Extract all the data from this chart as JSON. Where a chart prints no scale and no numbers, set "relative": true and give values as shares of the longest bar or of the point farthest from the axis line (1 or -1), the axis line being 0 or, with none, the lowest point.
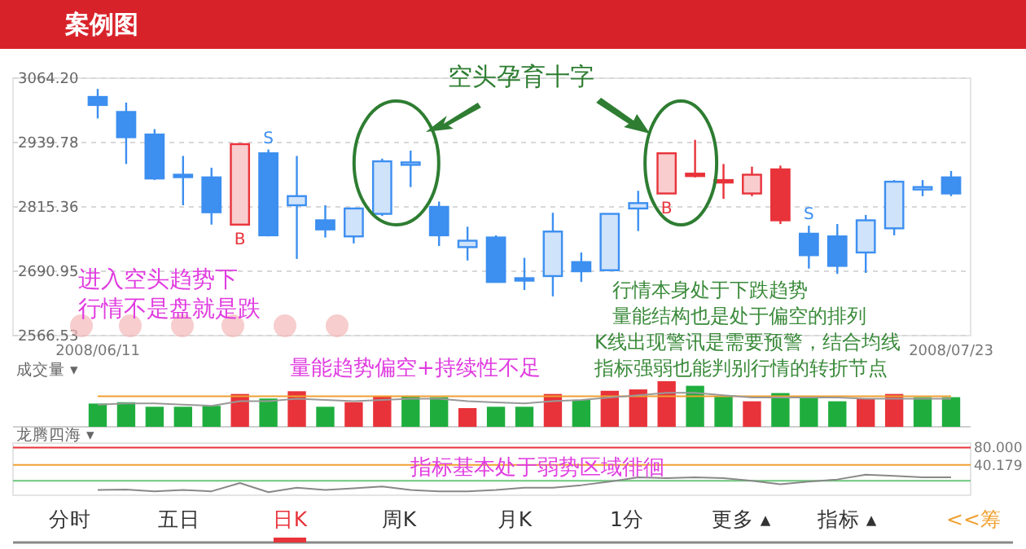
{
  "chart_data": [
    {
      "type": "candlestick",
      "title": "案例图",
      "categories": [
        "2008/06/11",
        null,
        null,
        null,
        null,
        null,
        null,
        null,
        null,
        null,
        null,
        null,
        null,
        null,
        null,
        null,
        null,
        null,
        null,
        null,
        null,
        null,
        null,
        null,
        null,
        null,
        null,
        null,
        null,
        null,
        "2008/07/23"
      ],
      "ohlc": [
        [
          3027.9,
          3043.5,
          2986.4,
          3012.4
        ],
        [
          2998.9,
          3017.1,
          2898.3,
          2950.1
        ],
        [
          2955.3,
          2965.7,
          2867.2,
          2870.3
        ],
        [
          2877.6,
          2913.9,
          2818.5,
          2875.5
        ],
        [
          2872.4,
          2891.1,
          2781.1,
          2805.0
        ],
        [
          2781.1,
          2938.7,
          2781.1,
          2936.7
        ],
        [
          2919.0,
          2926.3,
          2758.3,
          2760.4
        ],
        [
          2818.5,
          2913.9,
          2714.8,
          2836.2
        ],
        [
          2789.4,
          2818.5,
          2756.2,
          2771.8
        ],
        [
          2758.3,
          2812.3,
          2744.8,
          2812.3
        ],
        [
          2801.9,
          2908.7,
          2797.7,
          2903.5
        ],
        [
          2900.4,
          2924.2,
          2853.7,
          2901.4
        ],
        [
          2815.4,
          2825.7,
          2739.7,
          2760.4
        ],
        [
          2737.6,
          2777.0,
          2711.7,
          2750.0
        ],
        [
          2756.2,
          2760.4,
          2670.2,
          2670.2
        ],
        [
          2677.5,
          2716.9,
          2654.7,
          2673.3
        ],
        [
          2681.6,
          2804.0,
          2642.3,
          2767.7
        ],
        [
          2708.6,
          2727.2,
          2670.2,
          2690.9
        ],
        [
          2692.9,
          2801.9,
          2692.9,
          2801.9
        ],
        [
          2812.3,
          2846.5,
          2768.7,
          2822.7
        ],
        [
          2841.3,
          2919.0,
          2841.3,
          2919.0
        ],
        [
          2879.7,
          2945.0,
          2872.4,
          2875.5
        ],
        [
          2867.2,
          2898.3,
          2830.9,
          2864.1
        ],
        [
          2841.3,
          2893.2,
          2836.1,
          2877.6
        ],
        [
          2887.9,
          2895.2,
          2782.2,
          2789.4
        ],
        [
          2763.5,
          2779.0,
          2696.1,
          2722.0
        ],
        [
          2758.3,
          2782.2,
          2685.8,
          2701.3
        ],
        [
          2727.2,
          2799.8,
          2687.8,
          2789.4
        ],
        [
          2773.9,
          2867.2,
          2760.4,
          2864.1
        ],
        [
          2849.6,
          2867.2,
          2836.1,
          2853.7
        ],
        [
          2872.4,
          2884.8,
          2836.1,
          2841.3
        ]
      ],
      "colors": [
        "#3d8ff0",
        "#3d8ff0",
        "#3d8ff0",
        "#3d8ff0",
        "#3d8ff0",
        "#e8333a",
        "#3d8ff0",
        "#3d8ff0",
        "#3d8ff0",
        "#3d8ff0",
        "#3d8ff0",
        "#3d8ff0",
        "#3d8ff0",
        "#3d8ff0",
        "#3d8ff0",
        "#3d8ff0",
        "#3d8ff0",
        "#3d8ff0",
        "#3d8ff0",
        "#3d8ff0",
        "#e8333a",
        "#e8333a",
        "#e8333a",
        "#e8333a",
        "#e8333a",
        "#3d8ff0",
        "#3d8ff0",
        "#3d8ff0",
        "#3d8ff0",
        "#3d8ff0",
        "#3d8ff0"
      ],
      "ylim": [
        2566.53,
        3064.2
      ],
      "yticks": [
        {
          "value": 2566.53,
          "label": "2566.53"
        },
        {
          "value": 2690.95,
          "label": "2690.95"
        },
        {
          "value": 2815.36,
          "label": "2815.36"
        },
        {
          "value": 2939.78,
          "label": "2939.78"
        },
        {
          "value": 3064.2,
          "label": "3064.20"
        }
      ],
      "grid": "y",
      "annotations": [
        "空头孕育十字",
        "进入空头趋势下",
        "行情不是盘就是跌",
        "行情本身处于下跌趋势",
        "量能结构也是处于偏空的排列",
        "K线出现警讯是需要预警，结合均线",
        "指标强弱也能判别行情的转折节点",
        "B",
        "S",
        "B",
        "S"
      ]
    },
    {
      "type": "bar",
      "relative": true,
      "title": "成交量 ▾",
      "categories": [
        null,
        null,
        null,
        null,
        null,
        null,
        null,
        null,
        null,
        null,
        null,
        null,
        null,
        null,
        null,
        null,
        null,
        null,
        null,
        null,
        null,
        null,
        null,
        null,
        null,
        null,
        null,
        null,
        null,
        null,
        null
      ],
      "colors": [
        "#1fae3e",
        "#1fae3e",
        "#1fae3e",
        "#1fae3e",
        "#1fae3e",
        "#e8333a",
        "#1fae3e",
        "#e8333a",
        "#1fae3e",
        "#e8333a",
        "#e8333a",
        "#1fae3e",
        "#1fae3e",
        "#e8333a",
        "#1fae3e",
        "#1fae3e",
        "#e8333a",
        "#1fae3e",
        "#e8333a",
        "#e8333a",
        "#e8333a",
        "#1fae3e",
        "#1fae3e",
        "#e8333a",
        "#1fae3e",
        "#1fae3e",
        "#1fae3e",
        "#e8333a",
        "#e8333a",
        "#1fae3e",
        "#1fae3e"
      ],
      "values": [
        0.51,
        0.54,
        0.44,
        0.44,
        0.46,
        0.72,
        0.62,
        0.78,
        0.44,
        0.54,
        0.68,
        0.68,
        0.65,
        0.41,
        0.44,
        0.44,
        0.72,
        0.59,
        0.79,
        0.82,
        1,
        0.9,
        0.68,
        0.56,
        0.74,
        0.64,
        0.56,
        0.62,
        0.72,
        0.65,
        0.65
      ],
      "annotations": [
        "量能趋势偏空+持续性不足"
      ]
    },
    {
      "type": "line",
      "relative": true,
      "categories": [
        null,
        null,
        null,
        null,
        null,
        null,
        null,
        null,
        null,
        null,
        null,
        null,
        null,
        null,
        null,
        null,
        null,
        null,
        null,
        null,
        null,
        null,
        null,
        null,
        null,
        null,
        null,
        null,
        null,
        null,
        null
      ],
      "series": [
        {
          "color": "#f0a030",
          "values": [
            0.73,
            0.73,
            0.73,
            0.73,
            0.73,
            0.73,
            0.73,
            0.73,
            0.73,
            0.73,
            0.73,
            0.73,
            0.73,
            0.73,
            0.73,
            0.73,
            0.73,
            0.73,
            0.73,
            0.73,
            0.73,
            0.73,
            0.73,
            0.73,
            0.73,
            0.73,
            0.73,
            0.73,
            0.73,
            0.73,
            0.73
          ]
        },
        {
          "color": "#999999",
          "values": [
            0.09,
            0.18,
            0.18,
            0.09,
            0,
            0.36,
            0.36,
            0.55,
            0.45,
            0.36,
            0.45,
            0.55,
            0.55,
            0.36,
            0.27,
            0.18,
            0.36,
            0.45,
            0.64,
            0.82,
            1,
            1,
            0.82,
            0.64,
            0.64,
            0.64,
            0.64,
            0.55,
            0.55,
            0.55,
            0.55
          ]
        }
      ]
    },
    {
      "type": "line",
      "title": "龙腾四海 ▾",
      "tick_labels": "y",
      "categories": [
        null,
        null,
        null,
        null,
        null,
        null,
        null,
        null,
        null,
        null,
        null,
        null,
        null,
        null,
        null,
        null,
        null,
        null,
        null,
        null,
        null,
        null,
        null,
        null,
        null,
        null,
        null,
        null,
        null,
        null,
        null
      ],
      "series": [
        {
          "color": "#888888",
          "values": [
            -17,
            -16,
            -20,
            -17,
            -20,
            -1,
            -22,
            -12,
            -17,
            -13,
            -9,
            -17,
            -20,
            -20,
            -17,
            -12,
            -12,
            -6,
            2,
            12,
            10,
            12,
            10,
            4,
            -4,
            2,
            7,
            18,
            15,
            12,
            12
          ]
        }
      ],
      "ylim": [
        -29,
        90
      ],
      "yticks": [
        {
          "value": 40.179,
          "label": "40.179"
        },
        {
          "value": 80,
          "label": "80.000"
        }
      ],
      "ref_lines": [
        {
          "axis": "y",
          "value": 80,
          "color": "#e8333a"
        },
        {
          "axis": "y",
          "value": 40.179,
          "color": "#f0a030"
        },
        {
          "axis": "y",
          "value": 4,
          "color": "#6cc67a"
        }
      ],
      "annotations": [
        "指标基本处于弱势区域徘徊"
      ]
    },
    {
      "type": "other",
      "annotations": [
        "分时",
        "五日",
        "日K",
        "周K",
        "月K",
        "1分",
        "更多 ▴",
        "指标 ▴",
        "<<筹"
      ]
    }
  ]
}
